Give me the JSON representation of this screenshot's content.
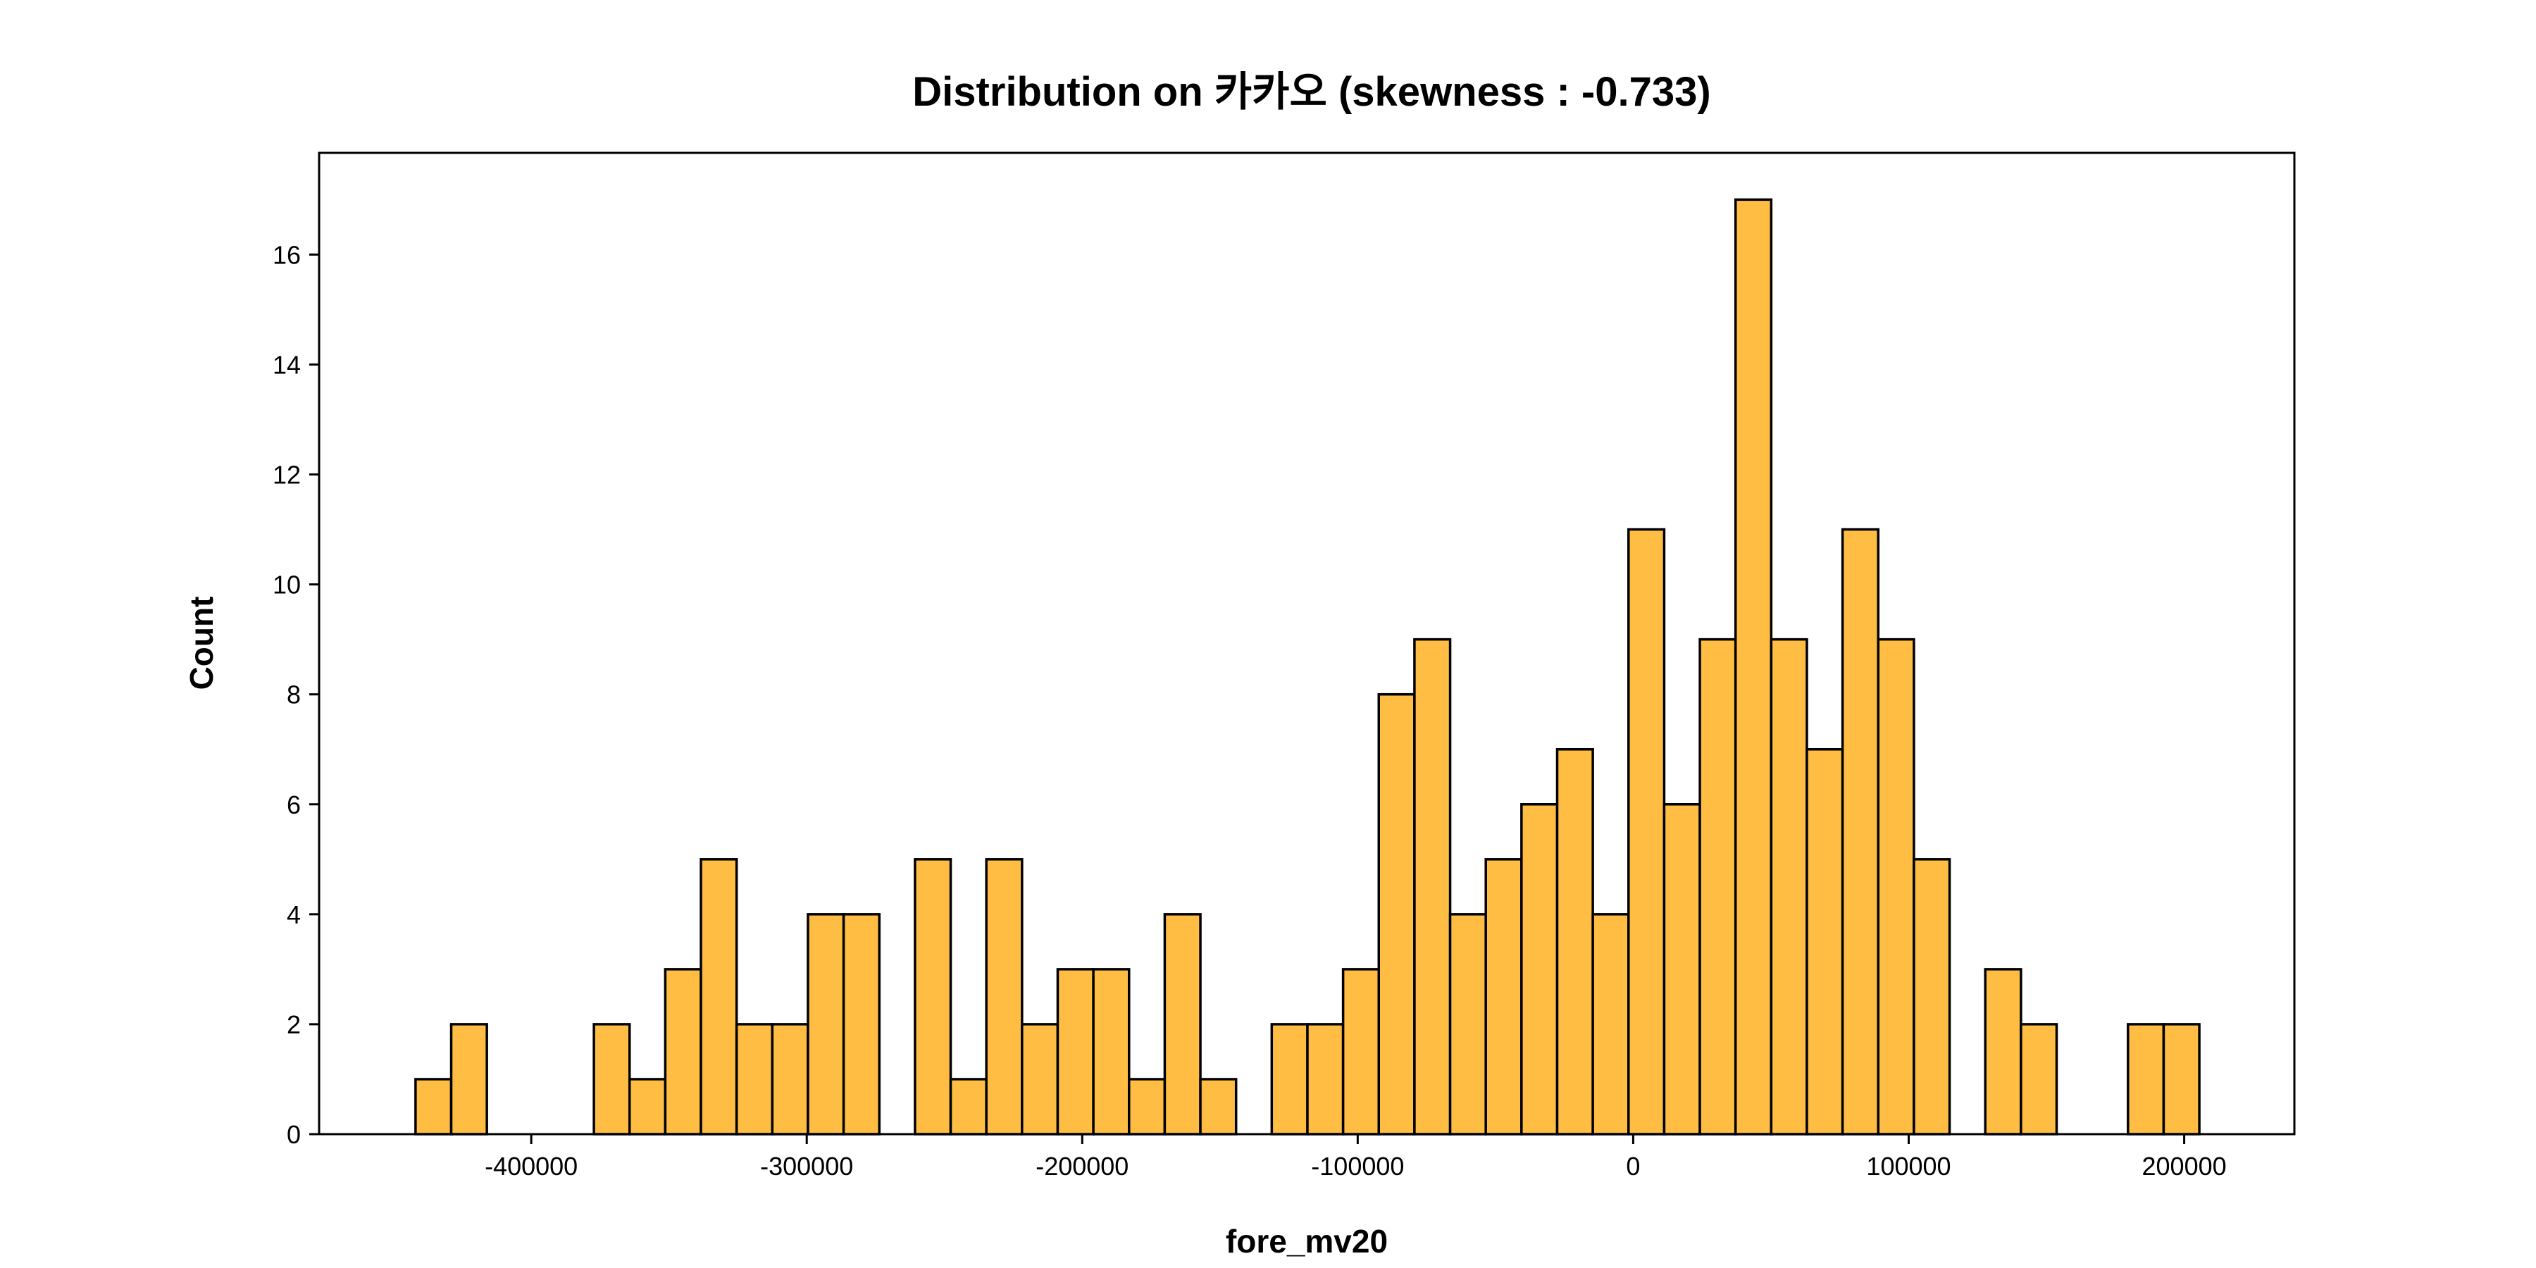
{
  "chart_data": {
    "type": "bar",
    "title": "Distribution on 카카오 (skewness : -0.733)",
    "xlabel": "fore_mv20",
    "ylabel": "Count",
    "bar_color": "#FFBD44",
    "edge_color": "#000000",
    "bin_start": -442000,
    "bin_width": 12950,
    "values": [
      1,
      2,
      0,
      0,
      0,
      2,
      1,
      3,
      5,
      2,
      2,
      4,
      4,
      0,
      5,
      1,
      5,
      2,
      3,
      3,
      1,
      4,
      1,
      0,
      2,
      2,
      3,
      8,
      9,
      4,
      5,
      6,
      7,
      4,
      11,
      6,
      9,
      17,
      9,
      7,
      11,
      9,
      5,
      0,
      3,
      2,
      0,
      0,
      2,
      2
    ],
    "xlim": [
      -477000,
      240000
    ],
    "ylim": [
      0,
      17.85
    ],
    "xticks": [
      -400000,
      -300000,
      -200000,
      -100000,
      0,
      100000,
      200000
    ],
    "xtick_labels": [
      "-400000",
      "-300000",
      "-200000",
      "-100000",
      "0",
      "100000",
      "200000"
    ],
    "yticks": [
      0,
      2,
      4,
      6,
      8,
      10,
      12,
      14,
      16
    ],
    "ytick_labels": [
      "0",
      "2",
      "4",
      "6",
      "8",
      "10",
      "12",
      "14",
      "16"
    ],
    "grid": false,
    "legend": "none"
  }
}
